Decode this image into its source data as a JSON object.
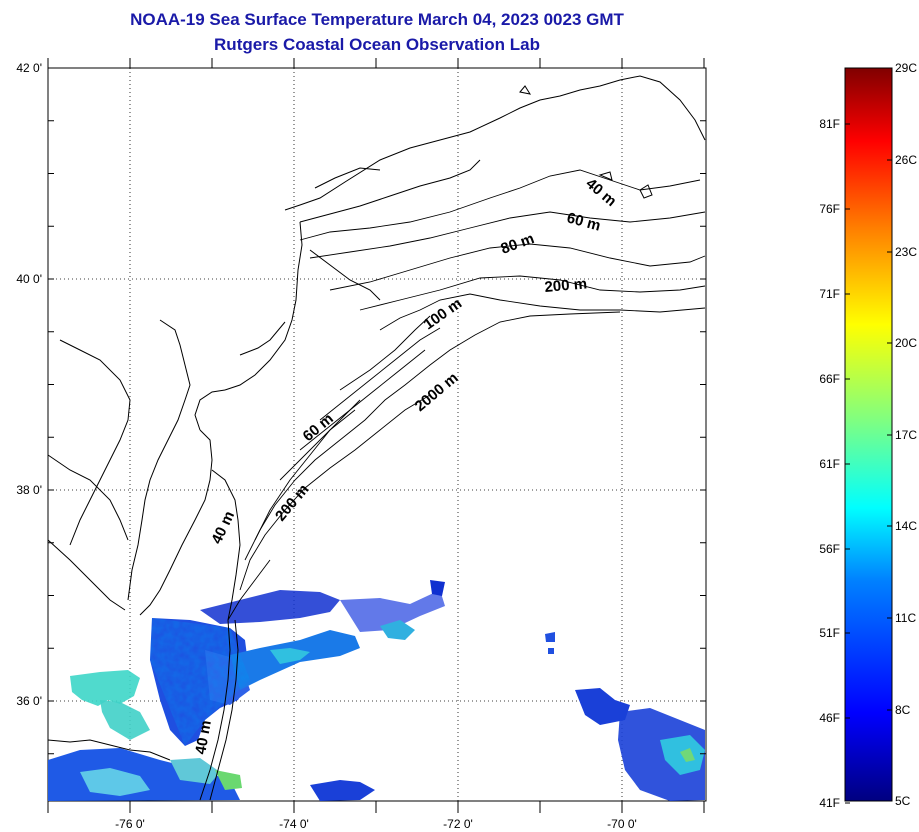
{
  "title_line1": "NOAA-19 Sea Surface Temperature March 04, 2023 0023 GMT",
  "title_line2": "Rutgers Coastal Ocean Observation Lab",
  "lat_labels": [
    {
      "value": 42,
      "text": "42 0'"
    },
    {
      "value": 40,
      "text": "40 0'"
    },
    {
      "value": 38,
      "text": "38 0'"
    },
    {
      "value": 36,
      "text": "36 0'"
    }
  ],
  "lon_labels": [
    {
      "value": -76,
      "text": "-76 0'"
    },
    {
      "value": -74,
      "text": "-74 0'"
    },
    {
      "value": -72,
      "text": "-72 0'"
    },
    {
      "value": -70,
      "text": "-70 0'"
    }
  ],
  "map_extent": {
    "lon_min": -77.0,
    "lon_max": -69.0,
    "lat_min": 35.0,
    "lat_max": 42.0
  },
  "contour_labels": [
    "40 m",
    "60 m",
    "80 m",
    "200 m",
    "100 m",
    "2000 m",
    "60 m",
    "40 m",
    "200 m",
    "40 m"
  ],
  "colorbar": {
    "left_labels": [
      "81F",
      "76F",
      "71F",
      "66F",
      "61F",
      "56F",
      "51F",
      "46F",
      "41F"
    ],
    "right_labels": [
      "29C",
      "26C",
      "23C",
      "20C",
      "17C",
      "14C",
      "11C",
      "8C",
      "5C"
    ],
    "colors": [
      "#000080",
      "#0000ff",
      "#0080ff",
      "#00ffff",
      "#80ff80",
      "#ffff00",
      "#ff8000",
      "#ff0000",
      "#800000"
    ]
  }
}
